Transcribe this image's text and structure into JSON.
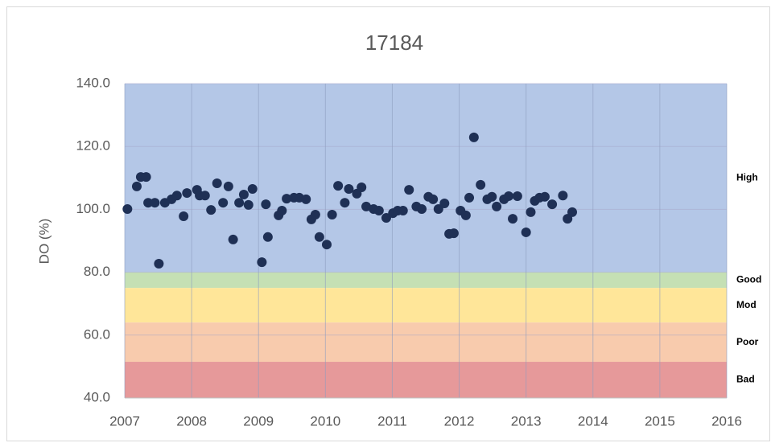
{
  "chart_data": {
    "type": "scatter",
    "title": "17184",
    "y_label": "DO (%)",
    "xlim": [
      2007,
      2016
    ],
    "xticks": [
      2007,
      2008,
      2009,
      2010,
      2011,
      2012,
      2013,
      2014,
      2015,
      2016
    ],
    "ylim": [
      40,
      140
    ],
    "yticks": [
      {
        "value": 40,
        "label": "40.0"
      },
      {
        "value": 60,
        "label": "60.0"
      },
      {
        "value": 80,
        "label": "80.0"
      },
      {
        "value": 100,
        "label": "100.0"
      },
      {
        "value": 120,
        "label": "120.0"
      },
      {
        "value": 140,
        "label": "140.0"
      }
    ],
    "grid": true,
    "bands": [
      {
        "label": "High",
        "from": 80,
        "to": 140,
        "color": "#b4c7e7"
      },
      {
        "label": "Good",
        "from": 75,
        "to": 80,
        "color": "#c5e0b4"
      },
      {
        "label": "Mod",
        "from": 64,
        "to": 75,
        "color": "#ffe699"
      },
      {
        "label": "Poor",
        "from": 51.5,
        "to": 64,
        "color": "#f8cbad"
      },
      {
        "label": "Bad",
        "from": 40,
        "to": 51.5,
        "color": "#e6999a"
      }
    ],
    "series": [
      {
        "color": "#1f3055",
        "x": [
          2007.04,
          2007.18,
          2007.24,
          2007.32,
          2007.35,
          2007.45,
          2007.51,
          2007.6,
          2007.7,
          2007.78,
          2007.88,
          2007.93,
          2008.08,
          2008.12,
          2008.2,
          2008.29,
          2008.38,
          2008.47,
          2008.55,
          2008.62,
          2008.71,
          2008.78,
          2008.85,
          2008.91,
          2009.05,
          2009.11,
          2009.14,
          2009.3,
          2009.35,
          2009.42,
          2009.53,
          2009.61,
          2009.71,
          2009.79,
          2009.85,
          2009.91,
          2010.02,
          2010.1,
          2010.19,
          2010.29,
          2010.35,
          2010.47,
          2010.54,
          2010.61,
          2010.72,
          2010.8,
          2010.91,
          2011.01,
          2011.08,
          2011.16,
          2011.25,
          2011.36,
          2011.44,
          2011.54,
          2011.61,
          2011.69,
          2011.78,
          2011.85,
          2011.92,
          2012.02,
          2012.1,
          2012.15,
          2012.22,
          2012.32,
          2012.42,
          2012.49,
          2012.56,
          2012.67,
          2012.74,
          2012.8,
          2012.87,
          2013.0,
          2013.07,
          2013.13,
          2013.2,
          2013.28,
          2013.39,
          2013.55,
          2013.62,
          2013.69
        ],
        "values": [
          100.1,
          107.3,
          110.3,
          110.3,
          102.1,
          102.1,
          82.7,
          102.1,
          103.2,
          104.4,
          97.8,
          105.2,
          106.2,
          104.4,
          104.4,
          99.8,
          108.3,
          102.1,
          107.3,
          90.4,
          102.1,
          104.7,
          101.4,
          106.5,
          83.2,
          101.6,
          91.2,
          98.1,
          99.6,
          103.4,
          103.7,
          103.7,
          103.2,
          96.8,
          98.3,
          91.2,
          88.8,
          98.3,
          107.5,
          102.1,
          106.5,
          105.0,
          107.0,
          100.9,
          100.1,
          99.6,
          97.3,
          98.8,
          99.6,
          99.6,
          106.2,
          100.9,
          100.1,
          104.0,
          103.2,
          100.1,
          101.9,
          92.2,
          92.4,
          99.6,
          98.1,
          103.7,
          122.9,
          107.8,
          103.2,
          104.0,
          100.9,
          103.2,
          104.2,
          97.0,
          104.2,
          92.7,
          99.1,
          102.7,
          103.7,
          104.0,
          101.6,
          104.4,
          97.0,
          99.1
        ]
      }
    ]
  }
}
